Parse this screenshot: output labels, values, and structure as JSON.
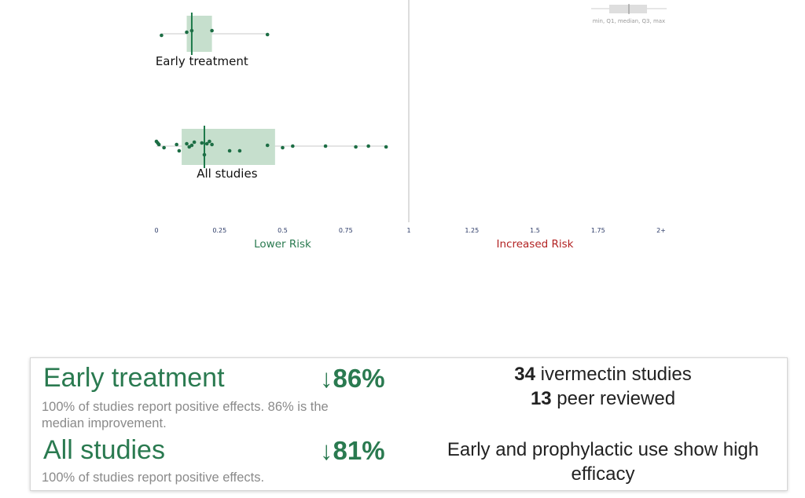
{
  "chart_data": {
    "type": "scatter",
    "xlabel": "",
    "xlim": [
      0,
      2
    ],
    "x_ticks": [
      "0",
      "0.25",
      "0.5",
      "0.75",
      "1",
      "1.25",
      "1.5",
      "1.75",
      "2+"
    ],
    "reference_line": 1,
    "lower_label": "Lower Risk",
    "higher_label": "Increased Risk",
    "legend_caption": "min, Q1, median, Q3, max",
    "groups": [
      {
        "name": "Early treatment",
        "box": {
          "q1": 0.12,
          "median": 0.14,
          "q3": 0.22
        },
        "whisker": [
          0.02,
          0.44
        ],
        "points": [
          0.02,
          0.12,
          0.14,
          0.22,
          0.44
        ]
      },
      {
        "name": "All studies",
        "box": {
          "q1": 0.1,
          "median": 0.19,
          "q3": 0.47
        },
        "whisker": [
          0.0,
          0.91
        ],
        "points": [
          0.0,
          0.005,
          0.01,
          0.03,
          0.08,
          0.09,
          0.12,
          0.13,
          0.14,
          0.15,
          0.18,
          0.19,
          0.2,
          0.21,
          0.22,
          0.29,
          0.33,
          0.44,
          0.5,
          0.54,
          0.67,
          0.79,
          0.84,
          0.91
        ]
      }
    ],
    "colors": {
      "box": "#c6dfcd",
      "median": "#1d7a4a",
      "point": "#1d6e45",
      "whisker": "#c8c8c8",
      "lower": "#2a7a50",
      "higher": "#b22222"
    }
  },
  "summary": {
    "early": {
      "title": "Early treatment",
      "pct": "↓86%",
      "desc": "100% of studies report positive effects. 86% is the median improvement."
    },
    "all": {
      "title": "All studies",
      "pct": "↓81%",
      "desc": "100% of studies report positive effects."
    },
    "studies_count": "34",
    "studies_text": " ivermectin studies",
    "peer_count": "13",
    "peer_text": " peer reviewed",
    "claim": "Early and prophylactic use show high efficacy"
  }
}
